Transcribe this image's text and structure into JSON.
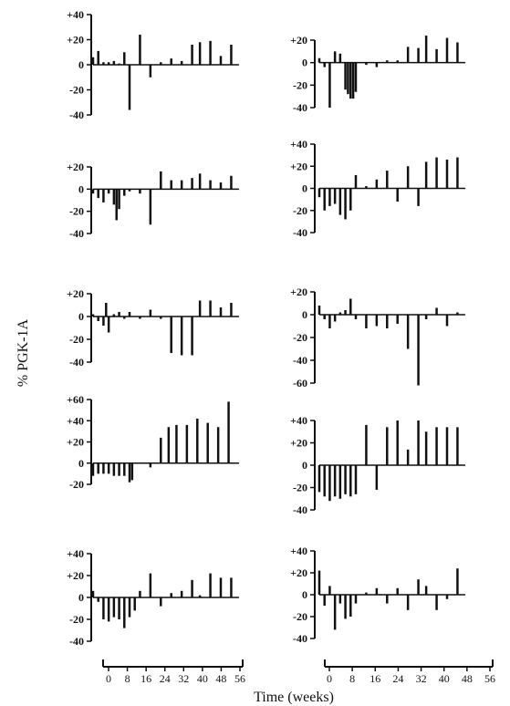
{
  "figure": {
    "ylabel": "% PGK-1A",
    "xlabel": "Time (weeks)",
    "ink_color": "#111111",
    "background": "#ffffff"
  },
  "chart_data": [
    {
      "type": "bar",
      "panel": "row1-left",
      "ylim": [
        -40,
        40
      ],
      "yticks": [
        "+40",
        "+20",
        "0",
        "-20",
        "-40"
      ],
      "x": [
        0,
        2,
        4,
        6,
        8,
        10,
        12,
        14,
        18,
        22,
        26,
        30,
        34,
        38,
        41,
        45,
        49,
        53
      ],
      "values": [
        6,
        11,
        2,
        2,
        3,
        1,
        10,
        -36,
        24,
        -10,
        2,
        5,
        3,
        16,
        18,
        19,
        7,
        16
      ]
    },
    {
      "type": "bar",
      "panel": "row1-right",
      "ylim": [
        -40,
        20
      ],
      "yticks": [
        "+20",
        "0",
        "-20",
        "-40"
      ],
      "x": [
        0,
        2,
        4,
        6,
        8,
        10,
        11,
        12,
        13,
        14,
        18,
        22,
        26,
        30,
        34,
        38,
        41,
        45,
        49,
        53
      ],
      "values": [
        4,
        -4,
        -40,
        10,
        8,
        -24,
        -28,
        -32,
        -32,
        -26,
        -2,
        -4,
        2,
        2,
        14,
        13,
        24,
        12,
        22,
        18
      ]
    },
    {
      "type": "bar",
      "panel": "row2-left",
      "ylim": [
        -40,
        20
      ],
      "yticks": [
        "+20",
        "0",
        "-20",
        "-40"
      ],
      "x": [
        0,
        2,
        4,
        6,
        8,
        9,
        10,
        12,
        14,
        18,
        22,
        26,
        30,
        34,
        38,
        41,
        45,
        49,
        53
      ],
      "values": [
        -4,
        -8,
        -12,
        -4,
        -14,
        -28,
        -18,
        -6,
        -2,
        -4,
        -32,
        16,
        8,
        8,
        10,
        14,
        8,
        6,
        12
      ]
    },
    {
      "type": "bar",
      "panel": "row2-right",
      "ylim": [
        -40,
        40
      ],
      "yticks": [
        "+40",
        "+20",
        "0",
        "-20",
        "-40"
      ],
      "x": [
        0,
        2,
        4,
        6,
        8,
        10,
        12,
        14,
        18,
        22,
        26,
        30,
        34,
        38,
        41,
        45,
        49,
        53
      ],
      "values": [
        -8,
        -20,
        -16,
        -14,
        -24,
        -28,
        -20,
        12,
        2,
        8,
        16,
        -12,
        20,
        -16,
        24,
        28,
        26,
        28
      ]
    },
    {
      "type": "bar",
      "panel": "row3-left",
      "ylim": [
        -40,
        20
      ],
      "yticks": [
        "+20",
        "0",
        "-20",
        "-40"
      ],
      "x": [
        0,
        2,
        4,
        5,
        6,
        8,
        10,
        12,
        14,
        18,
        22,
        26,
        30,
        34,
        38,
        41,
        45,
        49,
        53
      ],
      "values": [
        2,
        -4,
        -8,
        12,
        -14,
        2,
        4,
        -2,
        4,
        -2,
        6,
        -2,
        -32,
        -34,
        -34,
        14,
        14,
        8,
        12
      ]
    },
    {
      "type": "bar",
      "panel": "row3-right",
      "ylim": [
        -60,
        20
      ],
      "yticks": [
        "+20",
        "0",
        "-20",
        "-40",
        "-60"
      ],
      "x": [
        0,
        2,
        4,
        6,
        8,
        10,
        12,
        14,
        18,
        22,
        26,
        30,
        34,
        38,
        41,
        45,
        49,
        53
      ],
      "values": [
        8,
        -4,
        -12,
        -6,
        2,
        4,
        14,
        -4,
        -12,
        -10,
        -12,
        -8,
        -30,
        -62,
        -4,
        6,
        -10,
        2
      ]
    },
    {
      "type": "bar",
      "panel": "row4-left",
      "ylim": [
        -20,
        60
      ],
      "yticks": [
        "+60",
        "+40",
        "+20",
        "0",
        "-20"
      ],
      "x": [
        0,
        2,
        4,
        6,
        8,
        10,
        12,
        14,
        15,
        22,
        26,
        29,
        32,
        36,
        40,
        44,
        48,
        52
      ],
      "values": [
        -12,
        -10,
        -10,
        -10,
        -12,
        -12,
        -12,
        -18,
        -16,
        -4,
        24,
        34,
        36,
        36,
        42,
        38,
        34,
        58
      ]
    },
    {
      "type": "bar",
      "panel": "row4-right",
      "ylim": [
        -40,
        40
      ],
      "yticks": [
        "+40",
        "+20",
        "0",
        "-20",
        "-40"
      ],
      "x": [
        0,
        2,
        4,
        6,
        8,
        10,
        12,
        14,
        18,
        22,
        26,
        30,
        34,
        38,
        41,
        45,
        49,
        53
      ],
      "values": [
        -24,
        -28,
        -32,
        -28,
        -30,
        -26,
        -28,
        -26,
        36,
        -22,
        34,
        40,
        14,
        40,
        30,
        34,
        34,
        34
      ]
    },
    {
      "type": "bar",
      "panel": "row5-left",
      "ylim": [
        -40,
        40
      ],
      "yticks": [
        "+40",
        "+20",
        "0",
        "-20",
        "-40"
      ],
      "x": [
        0,
        2,
        4,
        6,
        8,
        10,
        12,
        14,
        16,
        18,
        22,
        26,
        30,
        34,
        38,
        41,
        45,
        49,
        53
      ],
      "values": [
        6,
        -4,
        -20,
        -22,
        -18,
        -20,
        -28,
        -18,
        -12,
        6,
        22,
        -8,
        4,
        6,
        16,
        2,
        22,
        18,
        18
      ]
    },
    {
      "type": "bar",
      "panel": "row5-right",
      "ylim": [
        -40,
        40
      ],
      "yticks": [
        "+40",
        "+20",
        "0",
        "-20",
        "-40"
      ],
      "x": [
        0,
        2,
        4,
        6,
        8,
        10,
        12,
        14,
        18,
        22,
        26,
        30,
        34,
        38,
        41,
        45,
        49,
        53
      ],
      "values": [
        22,
        -10,
        8,
        -32,
        -8,
        -22,
        -20,
        -8,
        2,
        6,
        -8,
        6,
        -14,
        14,
        8,
        -14,
        -4,
        24
      ]
    }
  ],
  "x_axes": [
    {
      "panel": "bottom-left",
      "xlim": [
        0,
        56
      ],
      "ticks": [
        "0",
        "8",
        "16",
        "24",
        "32",
        "40",
        "48",
        "56"
      ]
    },
    {
      "panel": "bottom-right",
      "xlim": [
        0,
        56
      ],
      "ticks": [
        "0",
        "8",
        "16",
        "24",
        "32",
        "40",
        "48",
        "56"
      ]
    }
  ]
}
